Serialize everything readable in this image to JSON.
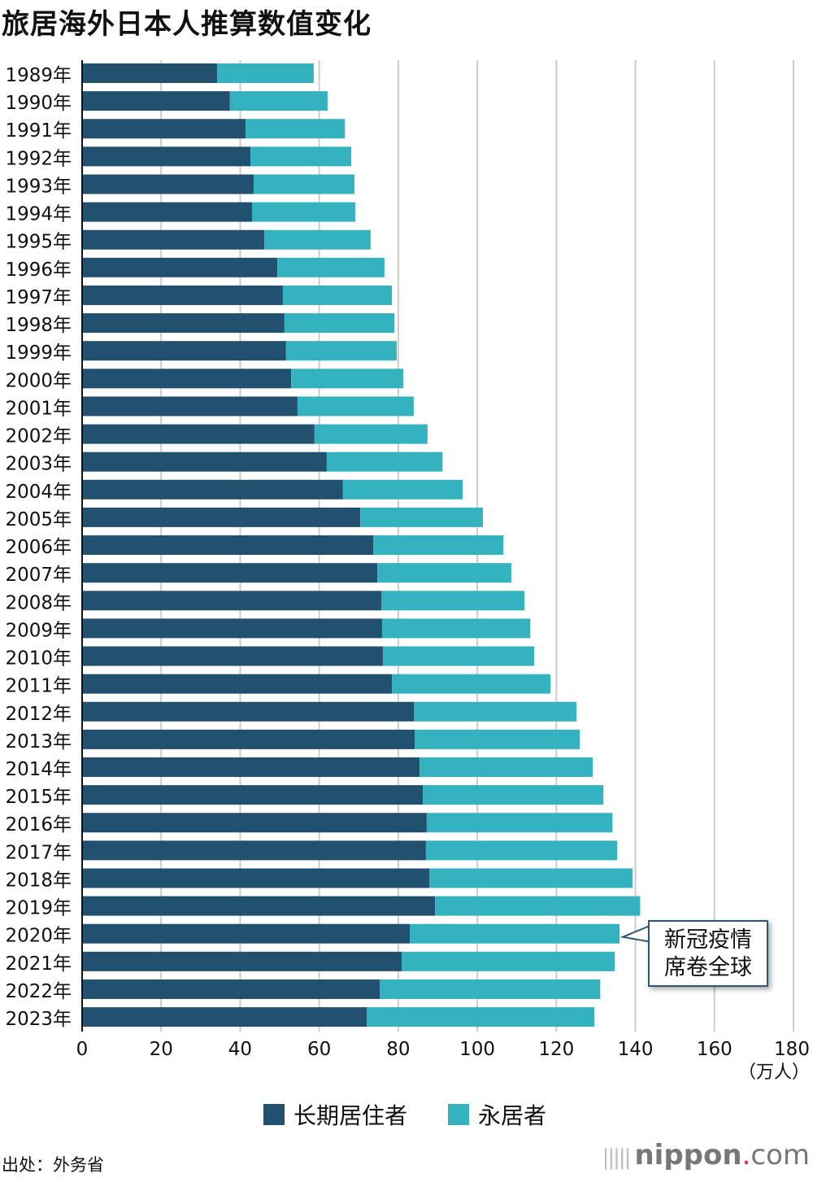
{
  "title": "旅居海外日本人推算数值变化",
  "source": "出处：外务省",
  "logo": "nippon.com",
  "annotation": {
    "line1": "新冠疫情",
    "line2": "席卷全球",
    "year": "2020年"
  },
  "chart_data": {
    "type": "bar",
    "orientation": "horizontal",
    "stacked": true,
    "categories": [
      "1989年",
      "1990年",
      "1991年",
      "1992年",
      "1993年",
      "1994年",
      "1995年",
      "1996年",
      "1997年",
      "1998年",
      "1999年",
      "2000年",
      "2001年",
      "2002年",
      "2003年",
      "2004年",
      "2005年",
      "2006年",
      "2007年",
      "2008年",
      "2009年",
      "2010年",
      "2011年",
      "2012年",
      "2013年",
      "2014年",
      "2015年",
      "2016年",
      "2017年",
      "2018年",
      "2019年",
      "2020年",
      "2021年",
      "2022年",
      "2023年"
    ],
    "series": [
      {
        "name": "长期居住者",
        "color": "#22506f",
        "values": [
          34.2,
          37.4,
          41.4,
          42.6,
          43.4,
          43.0,
          46.1,
          49.4,
          50.8,
          51.2,
          51.6,
          52.9,
          54.5,
          58.8,
          61.9,
          66.0,
          70.4,
          73.7,
          74.7,
          75.7,
          75.9,
          76.1,
          78.4,
          84.0,
          84.2,
          85.4,
          86.2,
          87.2,
          87.0,
          87.9,
          89.3,
          82.9,
          80.9,
          75.3,
          72.0
        ]
      },
      {
        "name": "永居者",
        "color": "#35b2c0",
        "values": [
          24.4,
          24.7,
          25.1,
          25.5,
          25.5,
          26.1,
          26.9,
          27.1,
          27.6,
          27.8,
          28.0,
          28.4,
          29.4,
          28.6,
          29.3,
          30.3,
          31.0,
          32.9,
          33.9,
          36.2,
          37.5,
          38.3,
          40.1,
          41.1,
          41.7,
          43.8,
          45.7,
          47.0,
          48.4,
          51.4,
          51.9,
          53.1,
          53.9,
          55.8,
          57.6
        ]
      }
    ],
    "xlim": [
      0,
      180
    ],
    "xticks": [
      "0",
      "20",
      "40",
      "60",
      "80",
      "100",
      "120",
      "140",
      "160",
      "180"
    ],
    "xunit": "（万人）",
    "grid": true,
    "legend": "bottom"
  }
}
